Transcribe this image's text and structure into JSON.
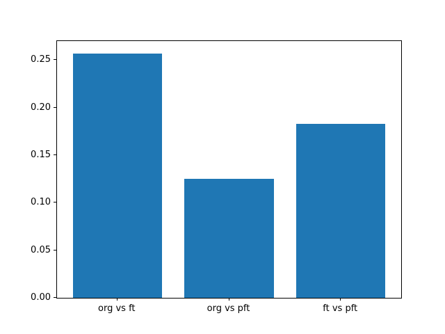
{
  "chart_data": {
    "type": "bar",
    "title": "",
    "xlabel": "",
    "ylabel": "",
    "categories": [
      "org vs ft",
      "org vs pft",
      "ft vs pft"
    ],
    "values": [
      0.257,
      0.125,
      0.183
    ],
    "ylim": [
      0,
      0.27
    ],
    "xlim": [
      -0.54,
      2.54
    ],
    "yticks": [
      0.0,
      0.05,
      0.1,
      0.15,
      0.2,
      0.25
    ],
    "ytick_labels": [
      "0.00",
      "0.05",
      "0.10",
      "0.15",
      "0.20",
      "0.25"
    ],
    "bar_width_units": 0.8,
    "bar_color": "#1f77b4",
    "spine_color": "#000000",
    "text_color": "#000000",
    "background_color": "#ffffff",
    "grid": false,
    "legend": null
  }
}
